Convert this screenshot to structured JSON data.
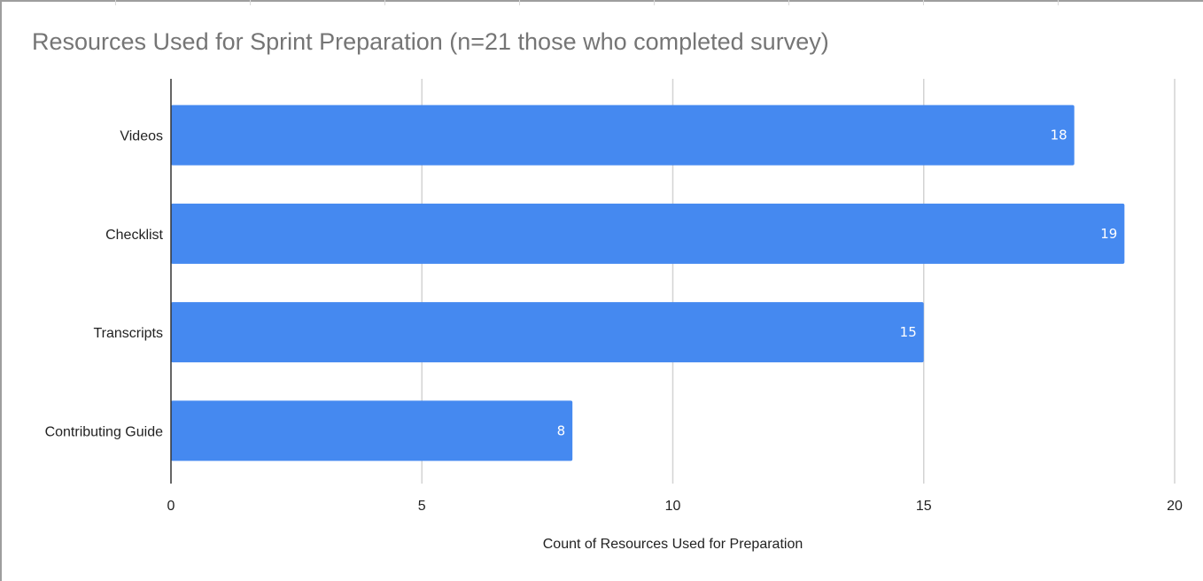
{
  "chart_data": {
    "type": "bar",
    "orientation": "horizontal",
    "title": "Resources Used for Sprint Preparation (n=21 those who completed survey)",
    "xlabel": "Count of Resources Used for Preparation",
    "ylabel": "",
    "categories": [
      "Videos",
      "Checklist",
      "Transcripts",
      "Contributing Guide"
    ],
    "values": [
      18,
      19,
      15,
      8
    ],
    "value_labels": [
      "18",
      "19",
      "15",
      "8"
    ],
    "xlim": [
      0,
      20
    ],
    "x_ticks": [
      0,
      5,
      10,
      15,
      20
    ],
    "x_tick_labels": [
      "0",
      "5",
      "10",
      "15",
      "20"
    ],
    "grid": true,
    "legend": "none",
    "bar_color": "#4589f0",
    "gridline_color": "#d3d3d3",
    "title_color": "#757575"
  }
}
